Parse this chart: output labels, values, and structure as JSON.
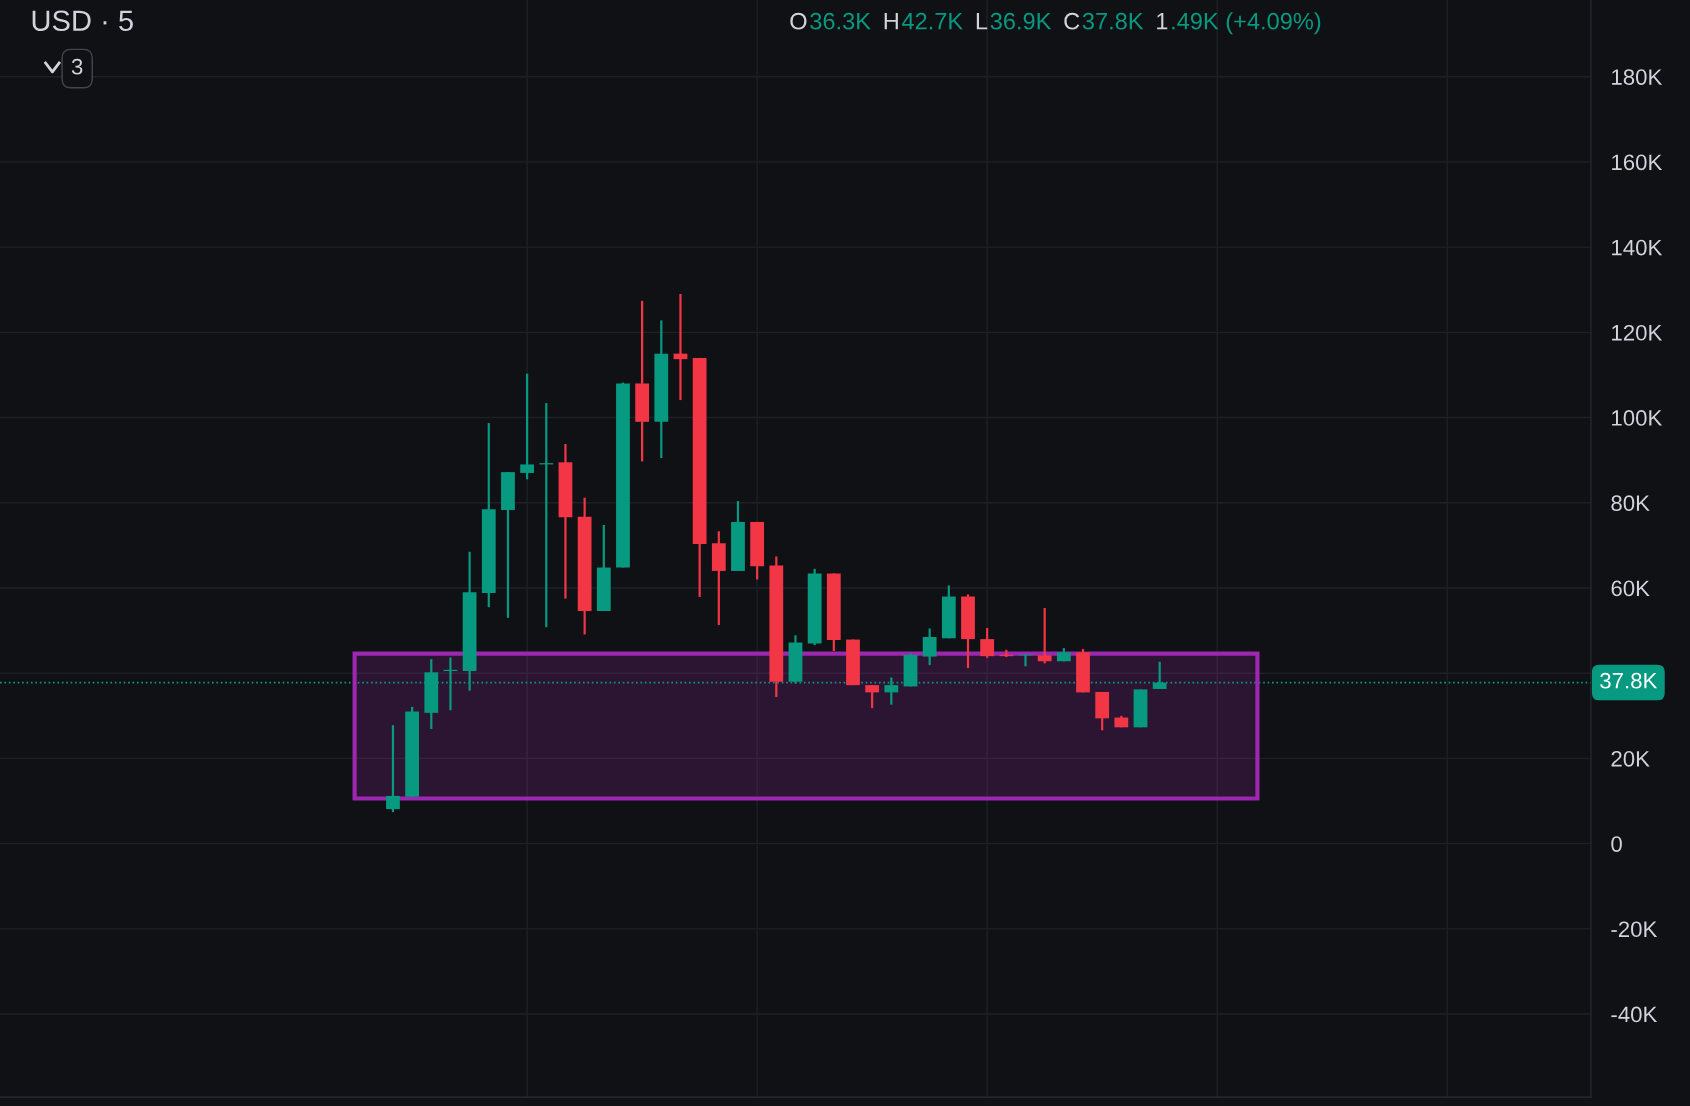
{
  "chart_data": {
    "type": "candlestick",
    "title": "USD · 5",
    "annotations": [
      "O36.3K",
      "H42.7K",
      "L36.9K",
      "C37.8K",
      "1.49K (+4.09%)",
      "3"
    ],
    "categories": [
      null,
      null,
      null,
      null,
      null,
      null,
      null,
      null,
      null,
      null,
      null,
      null,
      null,
      null,
      null,
      null,
      null,
      null,
      null,
      null,
      null,
      null,
      null,
      null,
      null,
      null,
      null,
      null,
      null,
      null,
      null,
      null,
      null,
      null,
      null,
      null,
      null,
      null,
      null,
      null,
      null,
      null,
      null,
      null,
      null,
      null,
      null,
      null,
      null,
      null,
      null,
      null,
      null,
      null,
      null,
      null,
      null,
      null,
      null,
      null,
      null,
      null,
      null,
      null,
      null,
      null,
      null,
      null,
      null,
      null,
      null,
      null,
      null,
      null,
      null,
      null,
      null,
      null,
      null,
      null,
      null,
      null,
      null
    ],
    "ohlc": [
      null,
      null,
      null,
      null,
      null,
      null,
      null,
      null,
      null,
      null,
      null,
      null,
      null,
      null,
      null,
      null,
      null,
      null,
      null,
      null,
      [
        8100,
        27800,
        7400,
        11200
      ],
      [
        11000,
        32100,
        11000,
        31000
      ],
      [
        30700,
        43300,
        26900,
        40200
      ],
      [
        40500,
        43700,
        31300,
        40800
      ],
      [
        40500,
        68500,
        35900,
        59000
      ],
      [
        58800,
        98700,
        55500,
        78500
      ],
      [
        78300,
        87200,
        53000,
        87200
      ],
      [
        87000,
        110300,
        85500,
        89000
      ],
      [
        89000,
        103400,
        50800,
        89300
      ],
      [
        89500,
        93800,
        57500,
        76600
      ],
      [
        76700,
        81200,
        49100,
        54600
      ],
      [
        54600,
        74800,
        54600,
        64800
      ],
      [
        64800,
        108200,
        64800,
        108000
      ],
      [
        108000,
        127400,
        89700,
        99000
      ],
      [
        99000,
        122800,
        90500,
        115000
      ],
      [
        115000,
        129000,
        104100,
        113700
      ],
      [
        114000,
        114000,
        57900,
        70300
      ],
      [
        70500,
        73300,
        51300,
        64000
      ],
      [
        64000,
        80400,
        64000,
        75500
      ],
      [
        75500,
        75500,
        62000,
        65100
      ],
      [
        65300,
        67400,
        34400,
        38000
      ],
      [
        38000,
        48900,
        37600,
        47200
      ],
      [
        47000,
        64500,
        46600,
        63400
      ],
      [
        63400,
        63400,
        45200,
        47800
      ],
      [
        47900,
        47900,
        37200,
        37200
      ],
      [
        37200,
        37200,
        31800,
        35500
      ],
      [
        35500,
        39000,
        32600,
        37200
      ],
      [
        36900,
        44600,
        36900,
        44300
      ],
      [
        43900,
        50500,
        41900,
        48500
      ],
      [
        48200,
        60600,
        48200,
        58000
      ],
      [
        58000,
        58500,
        41200,
        48000
      ],
      [
        48000,
        50600,
        43600,
        44000
      ],
      [
        44300,
        45500,
        43800,
        44000
      ],
      [
        44200,
        44400,
        41600,
        44400
      ],
      [
        44200,
        55300,
        42300,
        42800
      ],
      [
        42800,
        45900,
        42800,
        44900
      ],
      [
        44900,
        45700,
        35500,
        35500
      ],
      [
        35600,
        35600,
        26600,
        29400
      ],
      [
        29600,
        30000,
        27300,
        27300
      ],
      [
        27300,
        36200,
        27300,
        36200
      ],
      [
        36300,
        42700,
        36300,
        37800
      ],
      null,
      null,
      null,
      null,
      null,
      null,
      null,
      null,
      null,
      null,
      null,
      null,
      null,
      null,
      null,
      null,
      null,
      null,
      null,
      null,
      null,
      null
    ],
    "colors": [
      null,
      null,
      null,
      null,
      null,
      null,
      null,
      null,
      null,
      null,
      null,
      null,
      null,
      null,
      null,
      null,
      null,
      null,
      null,
      null,
      "#089981",
      "#089981",
      "#089981",
      "#089981",
      "#089981",
      "#089981",
      "#089981",
      "#089981",
      "#089981",
      "#f23645",
      "#f23645",
      "#089981",
      "#089981",
      "#f23645",
      "#089981",
      "#f23645",
      "#f23645",
      "#f23645",
      "#089981",
      "#f23645",
      "#f23645",
      "#089981",
      "#089981",
      "#f23645",
      "#f23645",
      "#f23645",
      "#089981",
      "#089981",
      "#089981",
      "#089981",
      "#f23645",
      "#f23645",
      "#f23645",
      "#089981",
      "#f23645",
      "#089981",
      "#f23645",
      "#f23645",
      "#f23645",
      "#089981",
      "#089981",
      null,
      null,
      null,
      null,
      null,
      null,
      null,
      null,
      null,
      null,
      null,
      null,
      null,
      null,
      null,
      null,
      null,
      null,
      null,
      null,
      null,
      null
    ],
    "ylim": [
      -59500,
      198000
    ],
    "yticks": [
      {
        "value": -40000,
        "label": "-40K"
      },
      {
        "value": -20000,
        "label": "-20K"
      },
      0,
      {
        "value": 20000,
        "label": "20K"
      },
      {
        "value": 40000,
        "label": null
      },
      {
        "value": 60000,
        "label": "60K"
      },
      {
        "value": 80000,
        "label": "80K"
      },
      {
        "value": 100000,
        "label": "100K"
      },
      {
        "value": 120000,
        "label": "120K"
      },
      {
        "value": 140000,
        "label": "140K"
      },
      {
        "value": 160000,
        "label": "160K"
      },
      {
        "value": 180000,
        "label": "180K"
      }
    ],
    "ref_lines": [
      {
        "axis": "y",
        "value": 37800,
        "label": "37.8K",
        "color": "#089981",
        "line_style": "dotted"
      }
    ],
    "bands": [
      {
        "axis": "y",
        "from": 10600,
        "to": 44600,
        "color": "#9c27b0"
      }
    ],
    "grid": true,
    "tick_labels": "y"
  }
}
